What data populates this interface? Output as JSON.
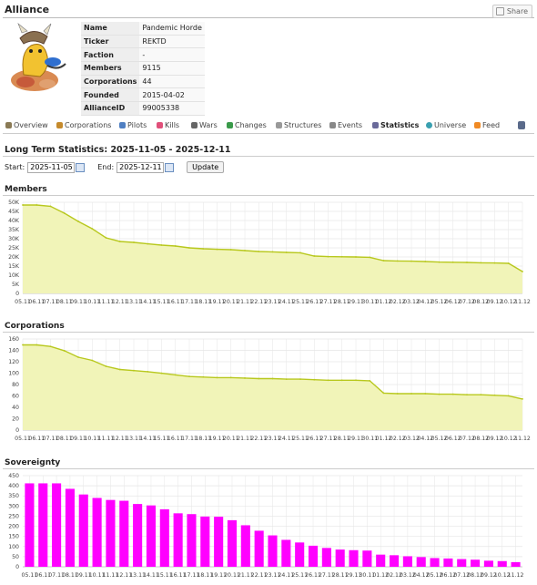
{
  "header": {
    "title": "Alliance",
    "share_label": "Share"
  },
  "info": [
    {
      "key": "Name",
      "value": "Pandemic Horde"
    },
    {
      "key": "Ticker",
      "value": "REKTD"
    },
    {
      "key": "Faction",
      "value": "-"
    },
    {
      "key": "Members",
      "value": "9115"
    },
    {
      "key": "Corporations",
      "value": "44"
    },
    {
      "key": "Founded",
      "value": "2015-04-02"
    },
    {
      "key": "AllianceID",
      "value": "99005338"
    }
  ],
  "nav": [
    {
      "label": "Overview",
      "icon": "home-icon",
      "color": "#8a7a55"
    },
    {
      "label": "Corporations",
      "icon": "corporation-icon",
      "color": "#c58a2c"
    },
    {
      "label": "Pilots",
      "icon": "pilot-icon",
      "color": "#4f7fc2"
    },
    {
      "label": "Kills",
      "icon": "heart-icon",
      "color": "#e0507a"
    },
    {
      "label": "Wars",
      "icon": "crossed-swords-icon",
      "color": "#666666"
    },
    {
      "label": "Changes",
      "icon": "changes-icon",
      "color": "#3a9a4a"
    },
    {
      "label": "Structures",
      "icon": "structure-icon",
      "color": "#999999"
    },
    {
      "label": "Events",
      "icon": "tag-icon",
      "color": "#888888"
    },
    {
      "label": "Statistics",
      "icon": "chart-icon",
      "color": "#6a6a9a",
      "active": true
    },
    {
      "label": "Universe",
      "icon": "globe-icon",
      "color": "#3aa0b0"
    },
    {
      "label": "Feed",
      "icon": "rss-icon",
      "color": "#f08a24"
    },
    {
      "label": "",
      "icon": "report-icon",
      "color": "#5a6a8a"
    }
  ],
  "stats": {
    "title": "Long Term Statistics: 2025-11-05 - 2025-12-11",
    "start_label": "Start:",
    "start_value": "2025-11-05",
    "end_label": "End:",
    "end_value": "2025-12-11",
    "update_label": "Update"
  },
  "colors": {
    "line": "#b8c81e",
    "fill": "#f1f4b8",
    "bar": "#ff00ff",
    "grid": "#e6e6e6"
  },
  "chart_data": [
    {
      "type": "area",
      "title": "Members",
      "x": [
        "05.11",
        "06.11",
        "07.11",
        "08.11",
        "09.11",
        "10.11",
        "11.11",
        "12.11",
        "13.11",
        "14.11",
        "15.11",
        "16.11",
        "17.11",
        "18.11",
        "19.11",
        "20.11",
        "21.11",
        "22.11",
        "23.11",
        "24.11",
        "25.11",
        "26.11",
        "27.11",
        "28.11",
        "29.11",
        "30.11",
        "01.12",
        "02.12",
        "03.12",
        "04.12",
        "05.12",
        "06.12",
        "07.12",
        "08.12",
        "09.12",
        "10.12",
        "11.12"
      ],
      "values": [
        48500,
        48500,
        47800,
        44000,
        39500,
        35500,
        30500,
        28500,
        28000,
        27200,
        26500,
        26000,
        25000,
        24500,
        24200,
        24000,
        23500,
        23000,
        22800,
        22500,
        22300,
        20500,
        20200,
        20100,
        20000,
        19800,
        18000,
        17800,
        17700,
        17500,
        17200,
        17100,
        17000,
        16800,
        16700,
        16500,
        12000
      ],
      "yticks": [
        "0",
        "5K",
        "10K",
        "15K",
        "20K",
        "25K",
        "30K",
        "35K",
        "40K",
        "45K",
        "50K"
      ],
      "ylim": [
        0,
        50000
      ]
    },
    {
      "type": "area",
      "title": "Corporations",
      "x": [
        "05.11",
        "06.11",
        "07.11",
        "08.11",
        "09.11",
        "10.11",
        "11.11",
        "12.11",
        "13.11",
        "14.11",
        "15.11",
        "16.11",
        "17.11",
        "18.11",
        "19.11",
        "20.11",
        "21.11",
        "22.11",
        "23.11",
        "24.11",
        "25.11",
        "26.11",
        "27.11",
        "28.11",
        "29.11",
        "30.11",
        "01.12",
        "02.12",
        "03.12",
        "04.12",
        "05.12",
        "06.12",
        "07.12",
        "08.12",
        "09.12",
        "10.12",
        "11.12"
      ],
      "values": [
        159,
        159,
        156,
        148,
        136,
        130,
        119,
        113,
        111,
        109,
        106,
        103,
        100,
        99,
        98,
        98,
        97,
        96,
        96,
        95,
        95,
        94,
        93,
        93,
        93,
        92,
        69,
        68,
        68,
        68,
        67,
        67,
        66,
        66,
        65,
        64,
        58
      ],
      "yticks": [
        "0",
        "20",
        "40",
        "60",
        "80",
        "100",
        "120",
        "140",
        "160"
      ],
      "ylim": [
        0,
        170
      ]
    },
    {
      "type": "bar",
      "title": "Sovereignty",
      "x": [
        "05.11",
        "06.11",
        "07.11",
        "08.11",
        "09.11",
        "10.11",
        "11.11",
        "12.11",
        "13.11",
        "14.11",
        "15.11",
        "16.11",
        "17.11",
        "18.11",
        "19.11",
        "20.11",
        "21.11",
        "22.11",
        "23.11",
        "24.11",
        "25.11",
        "26.11",
        "27.11",
        "28.11",
        "29.11",
        "30.11",
        "01.12",
        "02.12",
        "03.12",
        "04.12",
        "05.12",
        "06.12",
        "07.12",
        "08.12",
        "09.12",
        "10.12",
        "11.12"
      ],
      "values": [
        412,
        412,
        412,
        385,
        357,
        340,
        330,
        326,
        310,
        303,
        284,
        264,
        260,
        248,
        247,
        230,
        205,
        178,
        155,
        133,
        120,
        104,
        93,
        85,
        82,
        80,
        60,
        57,
        52,
        48,
        43,
        41,
        38,
        35,
        30,
        28,
        23
      ],
      "yticks": [
        "0",
        "50",
        "100",
        "150",
        "200",
        "250",
        "300",
        "350",
        "400",
        "450"
      ],
      "ylim": [
        0,
        450
      ]
    }
  ]
}
